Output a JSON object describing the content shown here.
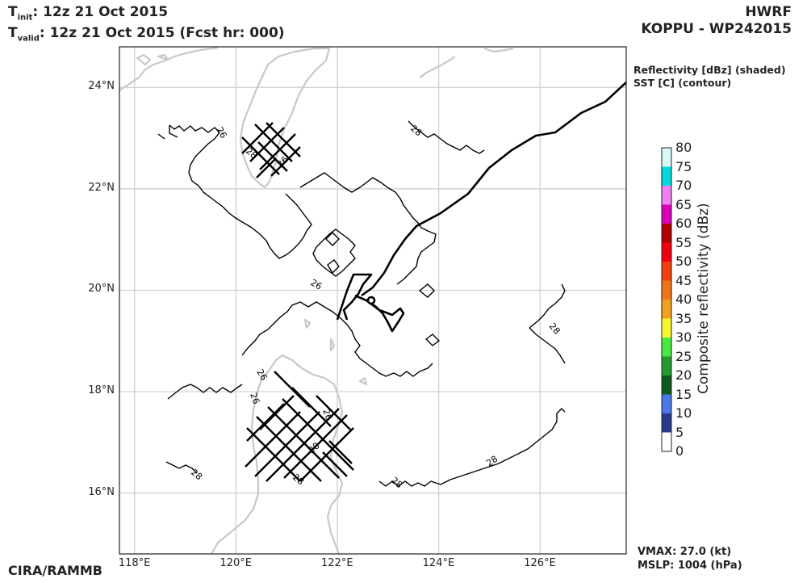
{
  "header": {
    "init_sym": "T",
    "init_sub": "init",
    "init_value": ":  12z 21 Oct 2015",
    "valid_sym": "T",
    "valid_sub": "valid",
    "valid_value": ": 12z 21 Oct 2015 (Fcst hr: 000)",
    "model": "HWRF",
    "storm": "KOPPU - WP242015"
  },
  "fields": {
    "shaded": "Reflectivity [dBz] (shaded)",
    "contour": "SST [C] (contour)"
  },
  "map": {
    "lon_range": [
      117.7,
      127.7
    ],
    "lat_range": [
      14.8,
      24.8
    ],
    "lon_ticks": [
      "118°E",
      "120°E",
      "122°E",
      "124°E",
      "126°E"
    ],
    "lat_ticks": [
      "24°N",
      "22°N",
      "20°N",
      "18°N",
      "16°N"
    ],
    "contour_labels": [
      "26",
      "26",
      "26",
      "26",
      "26",
      "26",
      "28",
      "28",
      "28",
      "28",
      "28",
      "28",
      "28",
      "28"
    ]
  },
  "colorbar": {
    "title": "Composite reflectivity (dBz)",
    "ticks": [
      "80",
      "75",
      "70",
      "65",
      "60",
      "55",
      "50",
      "45",
      "40",
      "35",
      "30",
      "25",
      "20",
      "15",
      "10",
      "5",
      "0"
    ],
    "colors": [
      "#ffffff",
      "#2a3a8a",
      "#4a78e8",
      "#0c5a1e",
      "#249a2e",
      "#48e840",
      "#f8f830",
      "#f0a020",
      "#f07418",
      "#f04010",
      "#f00010",
      "#b00000",
      "#d800b8",
      "#f080f0",
      "#00d8d8",
      "#d8f8f8"
    ]
  },
  "footer": {
    "vmax": "VMAX:  27.0 (kt)",
    "mslp": "MSLP: 1004 (hPa)",
    "credit": "CIRA/RAMMB"
  }
}
